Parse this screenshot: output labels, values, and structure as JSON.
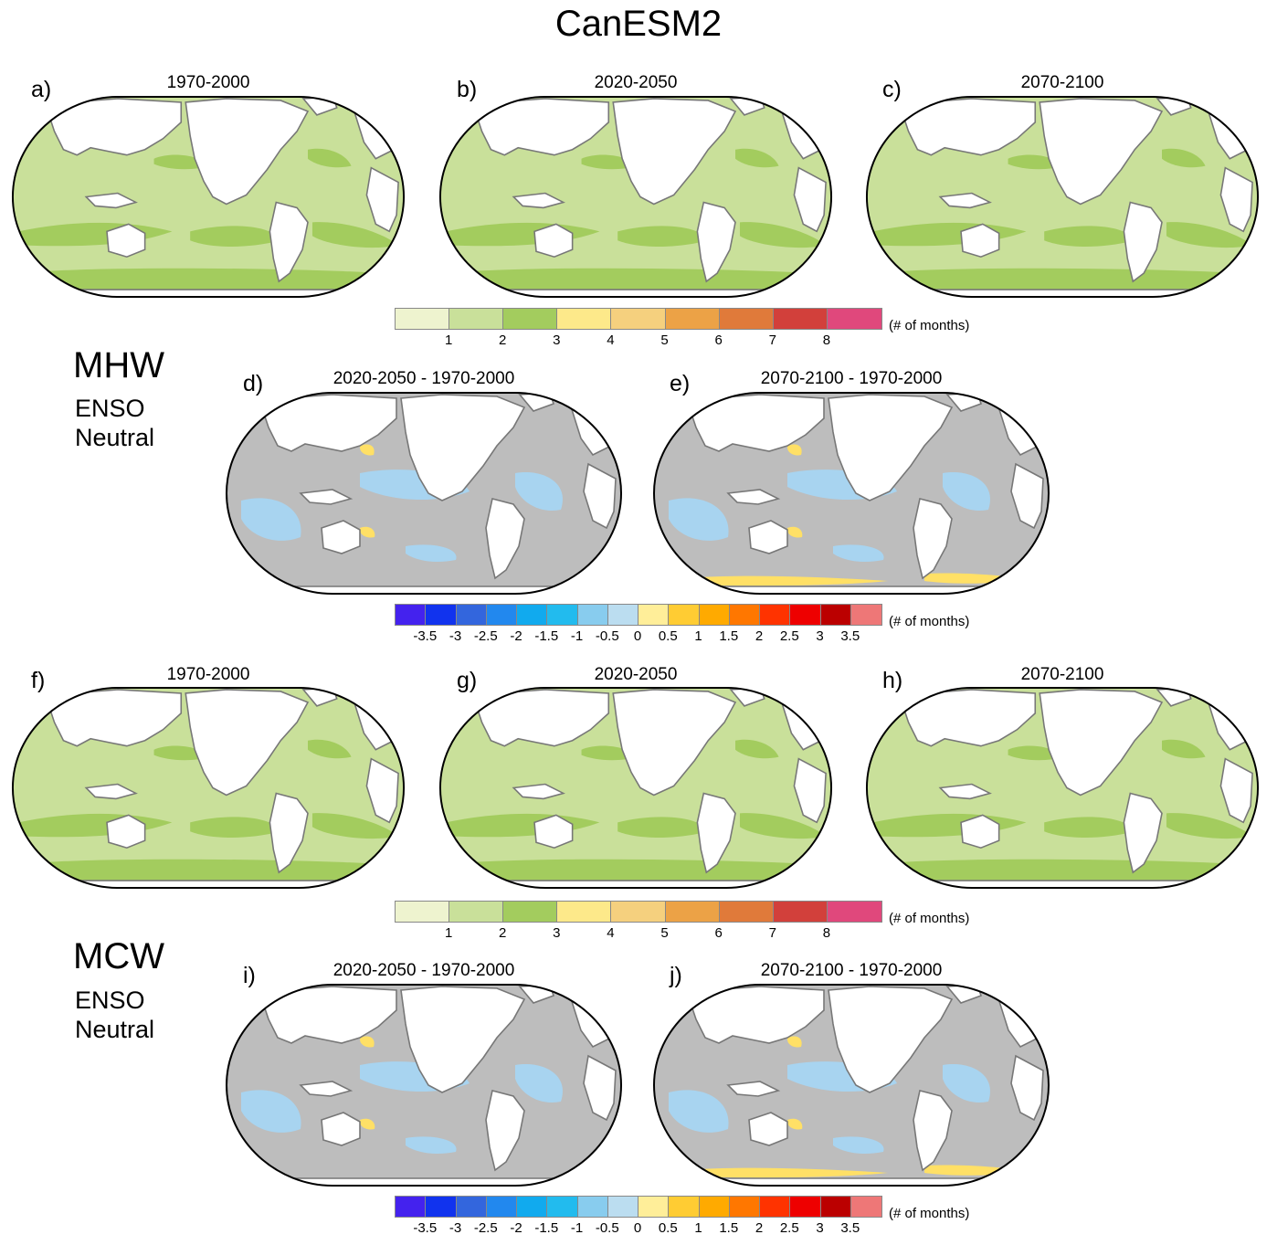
{
  "figure": {
    "title": "CanESM2",
    "unit_label": "(# of months)",
    "sections": [
      {
        "name": "MHW",
        "subtitle_line1": "ENSO",
        "subtitle_line2": "Neutral"
      },
      {
        "name": "MCW",
        "subtitle_line1": "ENSO",
        "subtitle_line2": "Neutral"
      }
    ]
  },
  "panels": [
    {
      "label": "a)",
      "title": "1970-2000",
      "kind": "absolute"
    },
    {
      "label": "b)",
      "title": "2020-2050",
      "kind": "absolute"
    },
    {
      "label": "c)",
      "title": "2070-2100",
      "kind": "absolute"
    },
    {
      "label": "d)",
      "title": "2020-2050 - 1970-2000",
      "kind": "difference"
    },
    {
      "label": "e)",
      "title": "2070-2100 - 1970-2000",
      "kind": "difference"
    },
    {
      "label": "f)",
      "title": "1970-2000",
      "kind": "absolute"
    },
    {
      "label": "g)",
      "title": "2020-2050",
      "kind": "absolute"
    },
    {
      "label": "h)",
      "title": "2070-2100",
      "kind": "absolute"
    },
    {
      "label": "i)",
      "title": "2020-2050 - 1970-2000",
      "kind": "difference"
    },
    {
      "label": "j)",
      "title": "2070-2100 - 1970-2000",
      "kind": "difference"
    }
  ],
  "colorbars": {
    "absolute": {
      "colors": [
        "#eef3cf",
        "#c9e09a",
        "#a3cc5e",
        "#fde98a",
        "#f5d07e",
        "#eca246",
        "#e07a3a",
        "#d2403b",
        "#e0487c"
      ],
      "ticks": [
        "1",
        "2",
        "3",
        "4",
        "5",
        "6",
        "7",
        "8"
      ]
    },
    "difference": {
      "colors": [
        "#4422ee",
        "#1133ee",
        "#3366dd",
        "#2288ee",
        "#11aaee",
        "#22bbee",
        "#88ccee",
        "#bbddf0",
        "#ffee99",
        "#ffcc33",
        "#ffaa00",
        "#ff7700",
        "#ff3300",
        "#ee0000",
        "#bb0000",
        "#ee7777"
      ],
      "ticks": [
        "-3.5",
        "-3",
        "-2.5",
        "-2",
        "-1.5",
        "-1",
        "-0.5",
        "0",
        "0.5",
        "1",
        "1.5",
        "2",
        "2.5",
        "3",
        "3.5"
      ]
    }
  },
  "colors": {
    "ocean_light_green": "#c9e09a",
    "ocean_mid_green": "#a3cc5e",
    "ocean_yellow_green": "#dfe9a8",
    "diff_gray": "#bdbdbd",
    "diff_light_blue": "#a8d4f0",
    "diff_yellow": "#ffe066",
    "land": "#ffffff",
    "coast": "#777777"
  }
}
